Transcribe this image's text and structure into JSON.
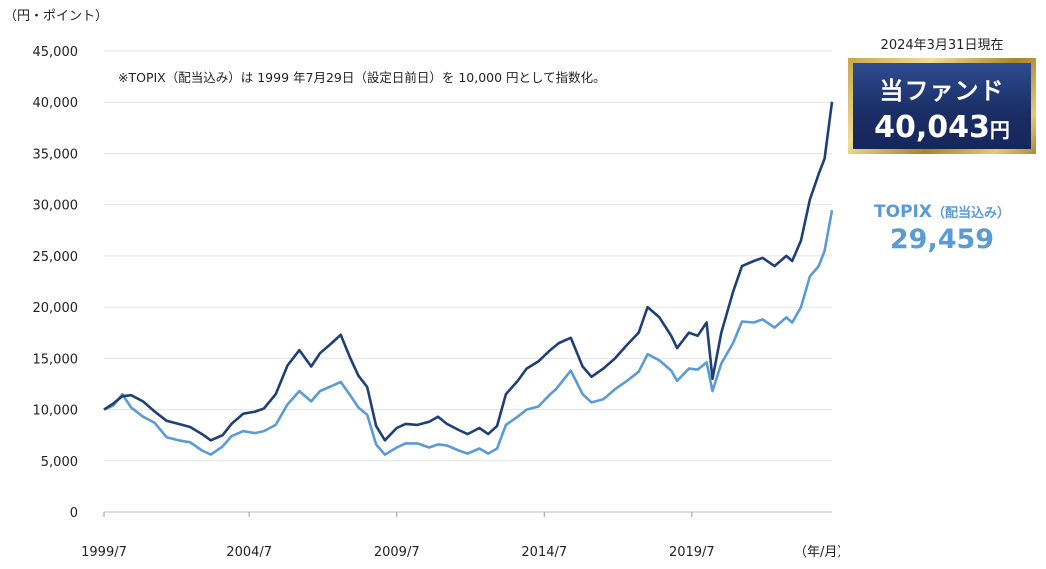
{
  "y_unit_label": "（円・ポイント）",
  "x_unit_label": "（年/月）",
  "note": "※TOPIX（配当込み）は 1999 年7月29日（設定日前日）を 10,000 円として指数化。",
  "as_of": "2024年3月31日現在",
  "fund": {
    "label": "当ファンド",
    "value": "40,043",
    "unit": "円",
    "color": "#1f3f77"
  },
  "topix": {
    "label": "TOPIX",
    "label_sub": "（配当込み）",
    "value": "29,459",
    "color": "#5b9bd5"
  },
  "chart_data": {
    "type": "line",
    "ylim": [
      0,
      45000
    ],
    "xlim": [
      1999.58,
      2024.25
    ],
    "y_ticks": [
      0,
      5000,
      10000,
      15000,
      20000,
      25000,
      30000,
      35000,
      40000,
      45000
    ],
    "y_tick_labels": [
      "0",
      "5,000",
      "10,000",
      "15,000",
      "20,000",
      "25,000",
      "30,000",
      "35,000",
      "40,000",
      "45,000"
    ],
    "x_ticks": [
      1999.58,
      2004.5,
      2009.5,
      2014.5,
      2019.5
    ],
    "x_tick_labels": [
      "1999/7",
      "2004/7",
      "2009/7",
      "2014/7",
      "2019/7"
    ],
    "grid": "horizontal",
    "series": [
      {
        "name": "当ファンド",
        "color": "#1f3f77",
        "points": [
          [
            1999.58,
            10000
          ],
          [
            1999.9,
            10600
          ],
          [
            2000.2,
            11300
          ],
          [
            2000.5,
            11400
          ],
          [
            2000.9,
            10800
          ],
          [
            2001.3,
            9800
          ],
          [
            2001.7,
            8900
          ],
          [
            2002.1,
            8600
          ],
          [
            2002.5,
            8300
          ],
          [
            2002.9,
            7600
          ],
          [
            2003.2,
            7000
          ],
          [
            2003.6,
            7500
          ],
          [
            2003.9,
            8600
          ],
          [
            2004.3,
            9600
          ],
          [
            2004.7,
            9800
          ],
          [
            2005.0,
            10100
          ],
          [
            2005.4,
            11500
          ],
          [
            2005.8,
            14300
          ],
          [
            2006.2,
            15800
          ],
          [
            2006.6,
            14200
          ],
          [
            2006.9,
            15500
          ],
          [
            2007.3,
            16500
          ],
          [
            2007.6,
            17300
          ],
          [
            2007.9,
            15200
          ],
          [
            2008.2,
            13300
          ],
          [
            2008.5,
            12200
          ],
          [
            2008.8,
            8400
          ],
          [
            2009.1,
            7000
          ],
          [
            2009.5,
            8200
          ],
          [
            2009.8,
            8600
          ],
          [
            2010.2,
            8500
          ],
          [
            2010.6,
            8800
          ],
          [
            2010.9,
            9300
          ],
          [
            2011.2,
            8600
          ],
          [
            2011.6,
            8000
          ],
          [
            2011.9,
            7600
          ],
          [
            2012.3,
            8200
          ],
          [
            2012.6,
            7600
          ],
          [
            2012.9,
            8400
          ],
          [
            2013.2,
            11500
          ],
          [
            2013.6,
            12800
          ],
          [
            2013.9,
            14000
          ],
          [
            2014.3,
            14700
          ],
          [
            2014.7,
            15800
          ],
          [
            2015.0,
            16500
          ],
          [
            2015.4,
            17000
          ],
          [
            2015.8,
            14200
          ],
          [
            2016.1,
            13200
          ],
          [
            2016.5,
            14000
          ],
          [
            2016.9,
            15000
          ],
          [
            2017.3,
            16300
          ],
          [
            2017.7,
            17500
          ],
          [
            2018.0,
            20000
          ],
          [
            2018.4,
            19000
          ],
          [
            2018.8,
            17200
          ],
          [
            2019.0,
            16000
          ],
          [
            2019.4,
            17500
          ],
          [
            2019.7,
            17200
          ],
          [
            2020.0,
            18500
          ],
          [
            2020.2,
            13000
          ],
          [
            2020.5,
            17500
          ],
          [
            2020.9,
            21500
          ],
          [
            2021.2,
            24000
          ],
          [
            2021.6,
            24500
          ],
          [
            2021.9,
            24800
          ],
          [
            2022.3,
            24000
          ],
          [
            2022.7,
            25000
          ],
          [
            2022.9,
            24500
          ],
          [
            2023.2,
            26500
          ],
          [
            2023.5,
            30500
          ],
          [
            2023.8,
            33000
          ],
          [
            2024.0,
            34500
          ],
          [
            2024.25,
            40043
          ]
        ]
      },
      {
        "name": "TOPIX（配当込み）",
        "color": "#5b9bd5",
        "points": [
          [
            1999.58,
            10000
          ],
          [
            1999.9,
            10400
          ],
          [
            2000.2,
            11500
          ],
          [
            2000.5,
            10200
          ],
          [
            2000.9,
            9300
          ],
          [
            2001.3,
            8700
          ],
          [
            2001.7,
            7300
          ],
          [
            2002.1,
            7000
          ],
          [
            2002.5,
            6800
          ],
          [
            2002.9,
            6000
          ],
          [
            2003.2,
            5600
          ],
          [
            2003.6,
            6400
          ],
          [
            2003.9,
            7400
          ],
          [
            2004.3,
            7900
          ],
          [
            2004.7,
            7700
          ],
          [
            2005.0,
            7900
          ],
          [
            2005.4,
            8500
          ],
          [
            2005.8,
            10500
          ],
          [
            2006.2,
            11800
          ],
          [
            2006.6,
            10800
          ],
          [
            2006.9,
            11800
          ],
          [
            2007.3,
            12300
          ],
          [
            2007.6,
            12700
          ],
          [
            2007.9,
            11500
          ],
          [
            2008.2,
            10200
          ],
          [
            2008.5,
            9500
          ],
          [
            2008.8,
            6600
          ],
          [
            2009.1,
            5600
          ],
          [
            2009.5,
            6300
          ],
          [
            2009.8,
            6700
          ],
          [
            2010.2,
            6700
          ],
          [
            2010.6,
            6300
          ],
          [
            2010.9,
            6600
          ],
          [
            2011.2,
            6500
          ],
          [
            2011.6,
            6000
          ],
          [
            2011.9,
            5700
          ],
          [
            2012.3,
            6200
          ],
          [
            2012.6,
            5700
          ],
          [
            2012.9,
            6200
          ],
          [
            2013.2,
            8500
          ],
          [
            2013.6,
            9300
          ],
          [
            2013.9,
            10000
          ],
          [
            2014.3,
            10300
          ],
          [
            2014.7,
            11500
          ],
          [
            2014.9,
            12000
          ],
          [
            2015.4,
            13800
          ],
          [
            2015.8,
            11500
          ],
          [
            2016.1,
            10700
          ],
          [
            2016.5,
            11000
          ],
          [
            2016.9,
            12000
          ],
          [
            2017.3,
            12800
          ],
          [
            2017.7,
            13700
          ],
          [
            2018.0,
            15400
          ],
          [
            2018.4,
            14800
          ],
          [
            2018.8,
            13800
          ],
          [
            2019.0,
            12800
          ],
          [
            2019.4,
            14000
          ],
          [
            2019.7,
            13900
          ],
          [
            2020.0,
            14600
          ],
          [
            2020.2,
            11800
          ],
          [
            2020.5,
            14500
          ],
          [
            2020.9,
            16500
          ],
          [
            2021.2,
            18600
          ],
          [
            2021.6,
            18500
          ],
          [
            2021.9,
            18800
          ],
          [
            2022.3,
            18000
          ],
          [
            2022.7,
            19000
          ],
          [
            2022.9,
            18500
          ],
          [
            2023.2,
            20000
          ],
          [
            2023.5,
            23000
          ],
          [
            2023.8,
            24000
          ],
          [
            2024.0,
            25500
          ],
          [
            2024.25,
            29459
          ]
        ]
      }
    ]
  }
}
